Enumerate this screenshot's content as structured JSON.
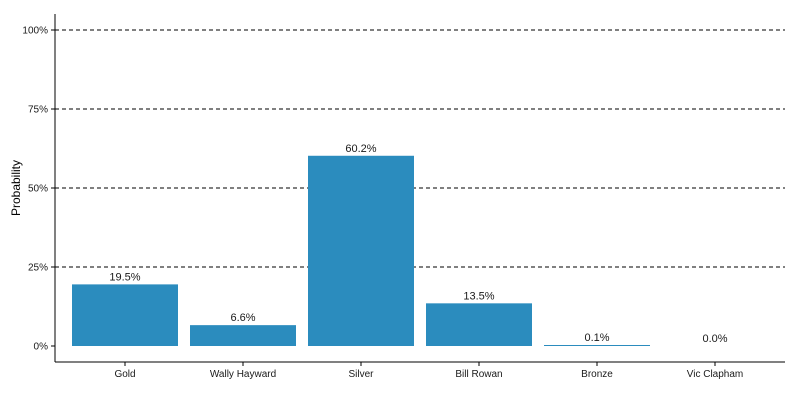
{
  "chart_data": {
    "type": "bar",
    "categories": [
      "Gold",
      "Wally Hayward",
      "Silver",
      "Bill Rowan",
      "Bronze",
      "Vic Clapham"
    ],
    "values": [
      19.5,
      6.6,
      60.2,
      13.5,
      0.1,
      0.0
    ],
    "value_labels": [
      "19.5%",
      "6.6%",
      "60.2%",
      "13.5%",
      "0.1%",
      "0.0%"
    ],
    "title": "",
    "xlabel": "",
    "ylabel": "Probability",
    "ylim": [
      0,
      100
    ],
    "yticks": [
      0,
      25,
      50,
      75,
      100
    ],
    "ytick_labels": [
      "0%",
      "25%",
      "50%",
      "75%",
      "100%"
    ],
    "grid": "horizontal dashed",
    "bar_color": "#2b8cbe"
  }
}
